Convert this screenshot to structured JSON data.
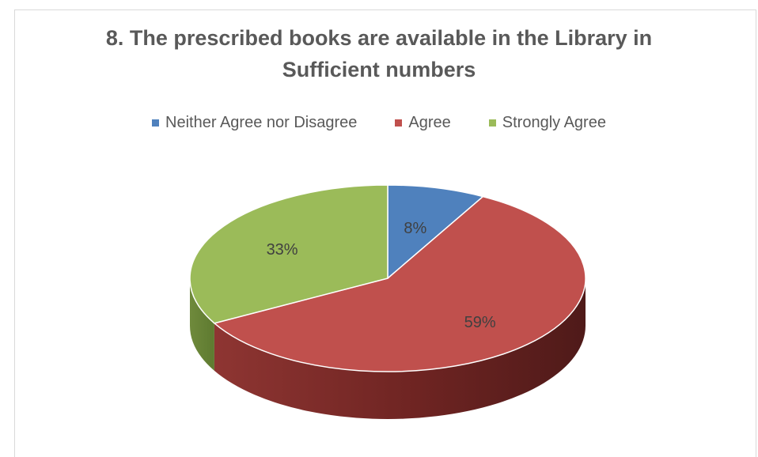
{
  "chart_data": {
    "type": "pie",
    "title": [
      "8. The prescribed books are available in the Library in",
      "Sufficient numbers"
    ],
    "categories": [
      "Neither Agree nor Disagree",
      "Agree",
      "Strongly Agree"
    ],
    "values": [
      8,
      59,
      33
    ],
    "data_labels": [
      "8%",
      "59%",
      "33%"
    ],
    "colors": [
      "#4f81bd",
      "#c0504d",
      "#9bbb59"
    ],
    "legend_position": "top",
    "style": "3d"
  }
}
